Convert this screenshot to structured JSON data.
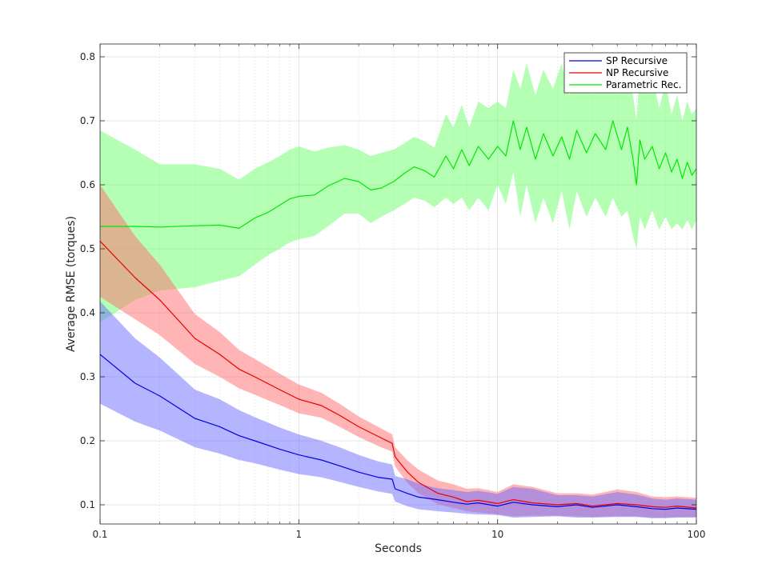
{
  "chart_data": {
    "type": "line",
    "xscale": "log",
    "xlabel": "Seconds",
    "ylabel": "Average RMSE (torques)",
    "xlim": [
      0.1,
      100
    ],
    "ylim": [
      0.07,
      0.82
    ],
    "xticks": [
      0.1,
      1,
      10,
      100
    ],
    "xtick_labels": [
      "0.1",
      "1",
      "10",
      "100"
    ],
    "yticks": [
      0.1,
      0.2,
      0.3,
      0.4,
      0.5,
      0.6,
      0.7,
      0.8
    ],
    "ytick_labels": [
      "0.1",
      "0.2",
      "0.3",
      "0.4",
      "0.5",
      "0.6",
      "0.7",
      "0.8"
    ],
    "grid": true,
    "legend_position": "top-right",
    "series": [
      {
        "name": "SP Recursive",
        "color": "#0000e6",
        "band_color": "#6b6bff",
        "x": [
          0.1,
          0.15,
          0.2,
          0.3,
          0.4,
          0.5,
          0.6,
          0.8,
          1.0,
          1.3,
          1.6,
          2.0,
          2.5,
          2.95,
          3.05,
          3.5,
          4.0,
          5.0,
          6.0,
          7.0,
          8.0,
          10.0,
          12.0,
          15.0,
          20.0,
          25.0,
          30.0,
          40.0,
          50.0,
          60.0,
          70.0,
          80.0,
          100.0
        ],
        "values": [
          0.335,
          0.29,
          0.27,
          0.235,
          0.222,
          0.208,
          0.2,
          0.187,
          0.178,
          0.17,
          0.161,
          0.151,
          0.143,
          0.14,
          0.125,
          0.118,
          0.112,
          0.108,
          0.104,
          0.101,
          0.103,
          0.098,
          0.104,
          0.1,
          0.097,
          0.1,
          0.096,
          0.1,
          0.097,
          0.094,
          0.093,
          0.095,
          0.093
        ],
        "lower": [
          0.258,
          0.23,
          0.216,
          0.19,
          0.18,
          0.17,
          0.165,
          0.155,
          0.148,
          0.143,
          0.136,
          0.128,
          0.121,
          0.117,
          0.105,
          0.098,
          0.093,
          0.09,
          0.088,
          0.086,
          0.085,
          0.084,
          0.08,
          0.081,
          0.082,
          0.08,
          0.08,
          0.081,
          0.081,
          0.079,
          0.079,
          0.08,
          0.08
        ],
        "upper": [
          0.418,
          0.36,
          0.33,
          0.28,
          0.265,
          0.248,
          0.237,
          0.221,
          0.21,
          0.2,
          0.19,
          0.178,
          0.168,
          0.163,
          0.145,
          0.14,
          0.133,
          0.126,
          0.123,
          0.12,
          0.122,
          0.117,
          0.128,
          0.125,
          0.115,
          0.115,
          0.113,
          0.12,
          0.116,
          0.11,
          0.108,
          0.11,
          0.108
        ]
      },
      {
        "name": "NP Recursive",
        "color": "#e60000",
        "band_color": "#ff6b6b",
        "x": [
          0.1,
          0.15,
          0.2,
          0.3,
          0.4,
          0.5,
          0.6,
          0.8,
          1.0,
          1.3,
          1.6,
          2.0,
          2.5,
          2.95,
          3.05,
          3.5,
          4.0,
          5.0,
          6.0,
          7.0,
          8.0,
          10.0,
          12.0,
          15.0,
          20.0,
          25.0,
          30.0,
          40.0,
          50.0,
          60.0,
          70.0,
          80.0,
          100.0
        ],
        "values": [
          0.512,
          0.455,
          0.42,
          0.36,
          0.335,
          0.312,
          0.3,
          0.28,
          0.265,
          0.255,
          0.24,
          0.222,
          0.207,
          0.196,
          0.175,
          0.152,
          0.135,
          0.118,
          0.112,
          0.105,
          0.107,
          0.102,
          0.108,
          0.103,
          0.1,
          0.102,
          0.098,
          0.102,
          0.1,
          0.097,
          0.096,
          0.098,
          0.095
        ],
        "lower": [
          0.425,
          0.39,
          0.365,
          0.32,
          0.3,
          0.282,
          0.272,
          0.256,
          0.243,
          0.236,
          0.222,
          0.206,
          0.192,
          0.183,
          0.16,
          0.135,
          0.118,
          0.101,
          0.095,
          0.09,
          0.088,
          0.085,
          0.082,
          0.083,
          0.083,
          0.082,
          0.081,
          0.082,
          0.082,
          0.08,
          0.08,
          0.081,
          0.081
        ],
        "upper": [
          0.6,
          0.52,
          0.475,
          0.398,
          0.37,
          0.342,
          0.328,
          0.305,
          0.288,
          0.275,
          0.258,
          0.238,
          0.222,
          0.21,
          0.19,
          0.17,
          0.155,
          0.138,
          0.132,
          0.125,
          0.126,
          0.12,
          0.132,
          0.128,
          0.118,
          0.118,
          0.116,
          0.124,
          0.12,
          0.113,
          0.112,
          0.113,
          0.111
        ]
      },
      {
        "name": "Parametric Rec.",
        "color": "#00e600",
        "band_color": "#6bff6b",
        "x": [
          0.1,
          0.15,
          0.2,
          0.3,
          0.4,
          0.5,
          0.6,
          0.7,
          0.8,
          0.9,
          1.0,
          1.2,
          1.4,
          1.7,
          2.0,
          2.3,
          2.6,
          3.0,
          3.4,
          3.8,
          4.3,
          4.8,
          5.5,
          6.0,
          6.6,
          7.2,
          8.0,
          9.0,
          10.0,
          11.0,
          12.0,
          13.0,
          14.0,
          15.5,
          17.0,
          19.0,
          21.0,
          23.0,
          25.0,
          28.0,
          31.0,
          35.0,
          38.0,
          42.0,
          45.0,
          48.0,
          50.0,
          52.0,
          55.0,
          60.0,
          65.0,
          70.0,
          75.0,
          80.0,
          85.0,
          90.0,
          95.0,
          100.0
        ],
        "values": [
          0.535,
          0.535,
          0.534,
          0.536,
          0.537,
          0.532,
          0.548,
          0.557,
          0.568,
          0.578,
          0.582,
          0.584,
          0.598,
          0.61,
          0.605,
          0.592,
          0.595,
          0.605,
          0.618,
          0.628,
          0.622,
          0.612,
          0.645,
          0.625,
          0.655,
          0.63,
          0.66,
          0.64,
          0.66,
          0.645,
          0.7,
          0.655,
          0.69,
          0.64,
          0.68,
          0.645,
          0.675,
          0.64,
          0.685,
          0.65,
          0.68,
          0.655,
          0.7,
          0.655,
          0.69,
          0.64,
          0.6,
          0.67,
          0.64,
          0.66,
          0.625,
          0.65,
          0.62,
          0.64,
          0.61,
          0.635,
          0.615,
          0.625
        ],
        "lower": [
          0.385,
          0.42,
          0.435,
          0.44,
          0.45,
          0.457,
          0.475,
          0.49,
          0.5,
          0.51,
          0.515,
          0.52,
          0.535,
          0.555,
          0.555,
          0.54,
          0.55,
          0.56,
          0.57,
          0.58,
          0.575,
          0.565,
          0.58,
          0.57,
          0.58,
          0.56,
          0.58,
          0.56,
          0.6,
          0.57,
          0.62,
          0.55,
          0.6,
          0.54,
          0.58,
          0.54,
          0.59,
          0.53,
          0.59,
          0.55,
          0.58,
          0.55,
          0.58,
          0.55,
          0.56,
          0.52,
          0.5,
          0.55,
          0.53,
          0.56,
          0.53,
          0.55,
          0.53,
          0.54,
          0.53,
          0.545,
          0.53,
          0.545
        ],
        "upper": [
          0.685,
          0.655,
          0.632,
          0.632,
          0.625,
          0.608,
          0.625,
          0.635,
          0.645,
          0.655,
          0.66,
          0.652,
          0.658,
          0.662,
          0.655,
          0.645,
          0.65,
          0.655,
          0.665,
          0.675,
          0.668,
          0.658,
          0.71,
          0.69,
          0.725,
          0.69,
          0.73,
          0.72,
          0.73,
          0.72,
          0.78,
          0.75,
          0.79,
          0.74,
          0.78,
          0.75,
          0.79,
          0.74,
          0.79,
          0.76,
          0.79,
          0.76,
          0.8,
          0.75,
          0.79,
          0.74,
          0.7,
          0.78,
          0.76,
          0.77,
          0.72,
          0.76,
          0.71,
          0.74,
          0.7,
          0.73,
          0.71,
          0.72
        ]
      }
    ]
  }
}
